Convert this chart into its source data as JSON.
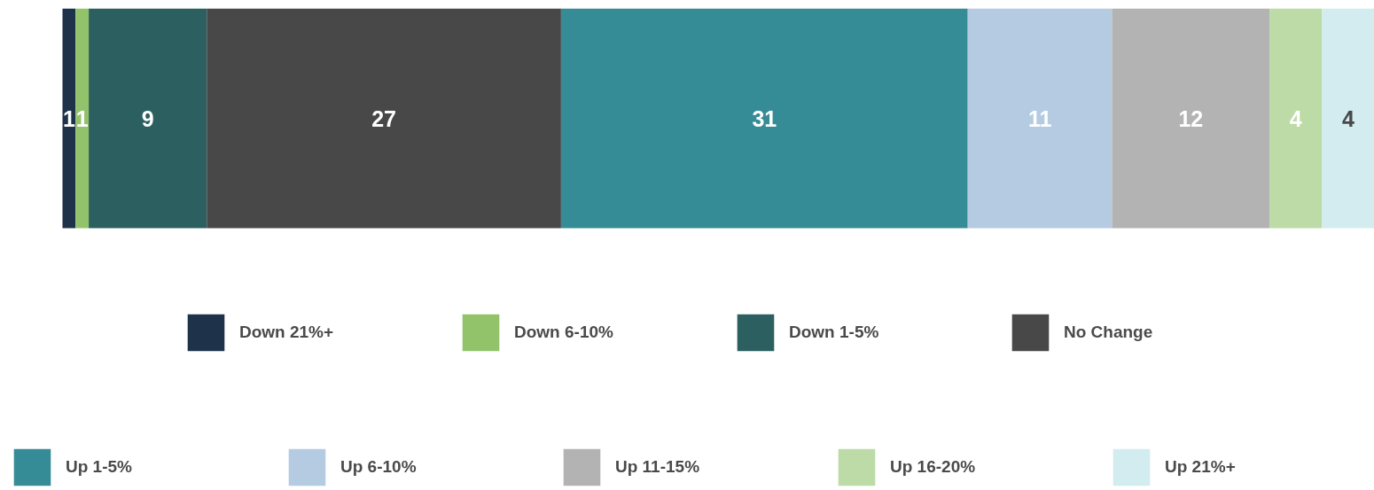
{
  "chart_data": {
    "type": "bar",
    "orientation": "horizontal",
    "stacked": true,
    "categories": [
      null
    ],
    "data_labels": true,
    "legend": "bottom",
    "tick_labels": false,
    "grid": false,
    "series": [
      {
        "name": "Down 21%+",
        "color": "#1e334a",
        "values": [
          1
        ]
      },
      {
        "name": "Down 6-10%",
        "color": "#92c36b",
        "values": [
          1
        ]
      },
      {
        "name": "Down 1-5%",
        "color": "#2c5f5f",
        "values": [
          9
        ]
      },
      {
        "name": "No Change",
        "color": "#484848",
        "values": [
          27
        ]
      },
      {
        "name": "Up 1-5%",
        "color": "#368c96",
        "values": [
          31
        ]
      },
      {
        "name": "Up 6-10%",
        "color": "#b4cbe1",
        "values": [
          11
        ]
      },
      {
        "name": "Up 11-15%",
        "color": "#b3b3b3",
        "values": [
          12
        ]
      },
      {
        "name": "Up 16-20%",
        "color": "#bcdba6",
        "values": [
          4
        ]
      },
      {
        "name": "Up 21%+",
        "color": "#d2ecf0",
        "values": [
          4
        ]
      }
    ]
  }
}
